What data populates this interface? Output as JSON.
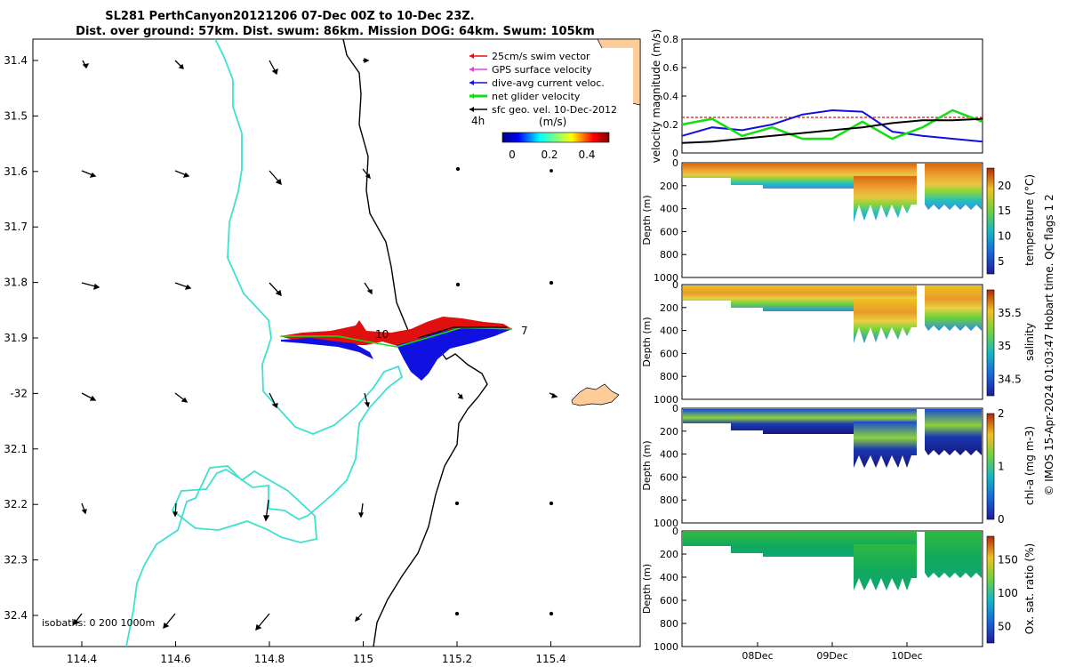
{
  "title": {
    "line1": "SL281 PerthCanyon20121206 07-Dec 00Z to 10-Dec 23Z.",
    "line2": "Dist. over ground: 57km. Dist. swum: 86km. Mission DOG: 64km. Swum: 105km"
  },
  "colors": {
    "coast": "#40e0d0",
    "land": "#fdcc99",
    "swim": "#e01010",
    "gps": "#e040e0",
    "current": "#1010e0",
    "net": "#10e010",
    "sfc": "#000000"
  },
  "map": {
    "legend": [
      {
        "label": "25cm/s swim vector",
        "color": "#e01010"
      },
      {
        "label": "GPS surface velocity",
        "color": "#e040e0"
      },
      {
        "label": "dive-avg current veloc.",
        "color": "#1010e0"
      },
      {
        "label": "net glider velocity",
        "color": "#10e010"
      },
      {
        "label": "sfc geo. vel. 10-Dec-2012",
        "color": "#000000"
      }
    ],
    "time_label": "4h",
    "colorbar_label": "(m/s)",
    "colorbar_ticks": [
      "0",
      "0.2",
      "0.4"
    ],
    "point_labels": [
      "10",
      "7"
    ],
    "isobaths_label": "isobaths: 0   200  1000m",
    "lat_ticks": [
      "31.4",
      "31.5",
      "31.6",
      "31.7",
      "31.8",
      "31.9",
      "-32",
      "32.1",
      "32.2",
      "32.3",
      "32.4"
    ],
    "lon_ticks": [
      "114.4",
      "114.6",
      "114.8",
      "115",
      "115.2",
      "115.4"
    ]
  },
  "chart_data": [
    {
      "type": "line",
      "ylabel": "velocity magnitude (m/s)",
      "ylim": [
        0,
        0.8
      ],
      "yticks": [
        "0",
        "0.2",
        "0.4",
        "0.6",
        "0.8"
      ],
      "x": [
        0,
        0.1,
        0.2,
        0.3,
        0.4,
        0.5,
        0.6,
        0.7,
        0.8,
        0.9,
        1.0
      ],
      "series": [
        {
          "name": "25cm/s swim vector",
          "values": [
            0.25,
            0.25,
            0.25,
            0.25,
            0.25,
            0.25,
            0.25,
            0.25,
            0.25,
            0.25,
            0.25
          ]
        },
        {
          "name": "dive-avg current veloc.",
          "values": [
            0.12,
            0.18,
            0.16,
            0.2,
            0.27,
            0.3,
            0.29,
            0.15,
            0.12,
            0.1,
            0.08
          ]
        },
        {
          "name": "net glider velocity",
          "values": [
            0.2,
            0.24,
            0.12,
            0.18,
            0.1,
            0.1,
            0.22,
            0.1,
            0.18,
            0.3,
            0.22
          ]
        },
        {
          "name": "sfc geo. vel. 10-Dec-2012",
          "values": [
            0.07,
            0.08,
            0.1,
            0.12,
            0.14,
            0.16,
            0.18,
            0.21,
            0.23,
            0.23,
            0.24
          ]
        }
      ]
    },
    {
      "type": "heatmap",
      "ylabel": "Depth (m)",
      "cbar_label": "temperature (°C)",
      "cbar_ticks": [
        "5",
        "10",
        "15",
        "20"
      ],
      "yticks": [
        "0",
        "200",
        "400",
        "600",
        "800",
        "1000"
      ]
    },
    {
      "type": "heatmap",
      "ylabel": "Depth (m)",
      "cbar_label": "salinity",
      "cbar_ticks": [
        "34.5",
        "35",
        "35.5"
      ],
      "yticks": [
        "0",
        "200",
        "400",
        "600",
        "800",
        "1000"
      ]
    },
    {
      "type": "heatmap",
      "ylabel": "Depth (m)",
      "cbar_label": "chl-a (mg m-3)",
      "cbar_ticks": [
        "0",
        "1",
        "2"
      ],
      "yticks": [
        "0",
        "200",
        "400",
        "600",
        "800",
        "1000"
      ]
    },
    {
      "type": "heatmap",
      "ylabel": "Depth (m)",
      "cbar_label": "Ox. sat. ratio (%)",
      "cbar_ticks": [
        "50",
        "100",
        "150"
      ],
      "yticks": [
        "0",
        "200",
        "400",
        "600",
        "800",
        "1000"
      ],
      "xticks": [
        "08Dec",
        "09Dec",
        "10Dec"
      ]
    }
  ],
  "footer": "© IMOS 15-Apr-2024 01:03:47 Hobart time. QC flags 1  2"
}
